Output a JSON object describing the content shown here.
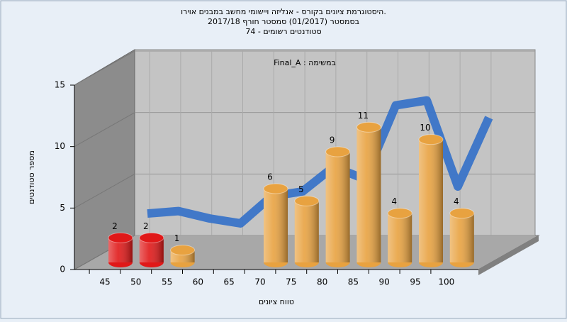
{
  "chart_data": {
    "type": "bar3d",
    "title": [
      "היסטוגרמת ציונים בקורס - אנליזה ויישומי מחשב במבנים אוירו.",
      "בסמסטר  (01/2017)  סמסטר חורף 2017/18",
      "סטודנטים רשומים - 74"
    ],
    "annotation": "Final_A : במשימה",
    "x_label": "טווח ציונים",
    "y_label": "מספר סטודנטים",
    "categories": [
      "45",
      "50",
      "55",
      "60",
      "65",
      "70",
      "75",
      "80",
      "85",
      "90",
      "95",
      "100"
    ],
    "values": [
      2,
      2,
      1,
      0,
      0,
      6,
      5,
      9,
      11,
      4,
      10,
      4
    ],
    "value_labels": [
      "2",
      "2",
      "1",
      null,
      null,
      "6",
      "5",
      "9",
      "11",
      "4",
      "10",
      "4"
    ],
    "colors": [
      "#e01818",
      "#e01818",
      "#e8a240",
      "#e8a240",
      "#e8a240",
      "#e8a240",
      "#e8a240",
      "#e8a240",
      "#e8a240",
      "#e8a240",
      "#e8a240",
      "#e8a240"
    ],
    "curve": {
      "color": "#3a74c8",
      "values": [
        3.4,
        3.6,
        3.0,
        2.6,
        4.8,
        5.2,
        7.2,
        6.2,
        12.2,
        12.6,
        5.6,
        11.2
      ]
    },
    "ylim": [
      0,
      15
    ],
    "yticks": [
      0,
      5,
      10,
      15
    ],
    "grid": true
  }
}
